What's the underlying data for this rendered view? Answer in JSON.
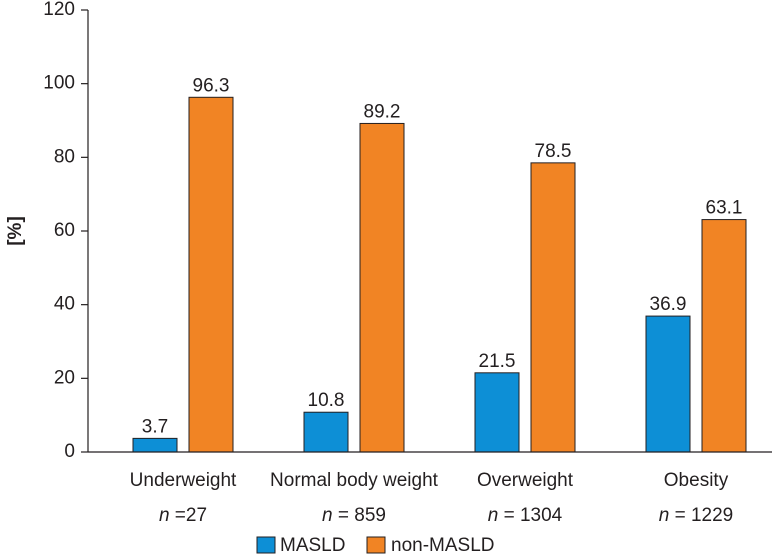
{
  "chart_data": {
    "type": "bar",
    "ylabel": "[%]",
    "ylim": [
      0,
      120
    ],
    "yticks": [
      0,
      20,
      40,
      60,
      80,
      100,
      120
    ],
    "grid": false,
    "legend_position": "bottom",
    "categories": [
      {
        "name": "Underweight",
        "n_prefix": "n",
        "n_text": " =27"
      },
      {
        "name": "Normal body weight",
        "n_prefix": "n",
        "n_text": " = 859"
      },
      {
        "name": "Overweight",
        "n_prefix": "n",
        "n_text": " = 1304"
      },
      {
        "name": "Obesity",
        "n_prefix": "n",
        "n_text": " = 1229"
      }
    ],
    "series": [
      {
        "name": "MASLD",
        "color": "#0d8fd6",
        "values": [
          3.7,
          10.8,
          21.5,
          36.9
        ],
        "labels": [
          "3.7",
          "10.8",
          "21.5",
          "36.9"
        ]
      },
      {
        "name": "non-MASLD",
        "color": "#f18424",
        "values": [
          96.3,
          89.2,
          78.5,
          63.1
        ],
        "labels": [
          "96.3",
          "89.2",
          "78.5",
          "63.1"
        ]
      }
    ]
  }
}
